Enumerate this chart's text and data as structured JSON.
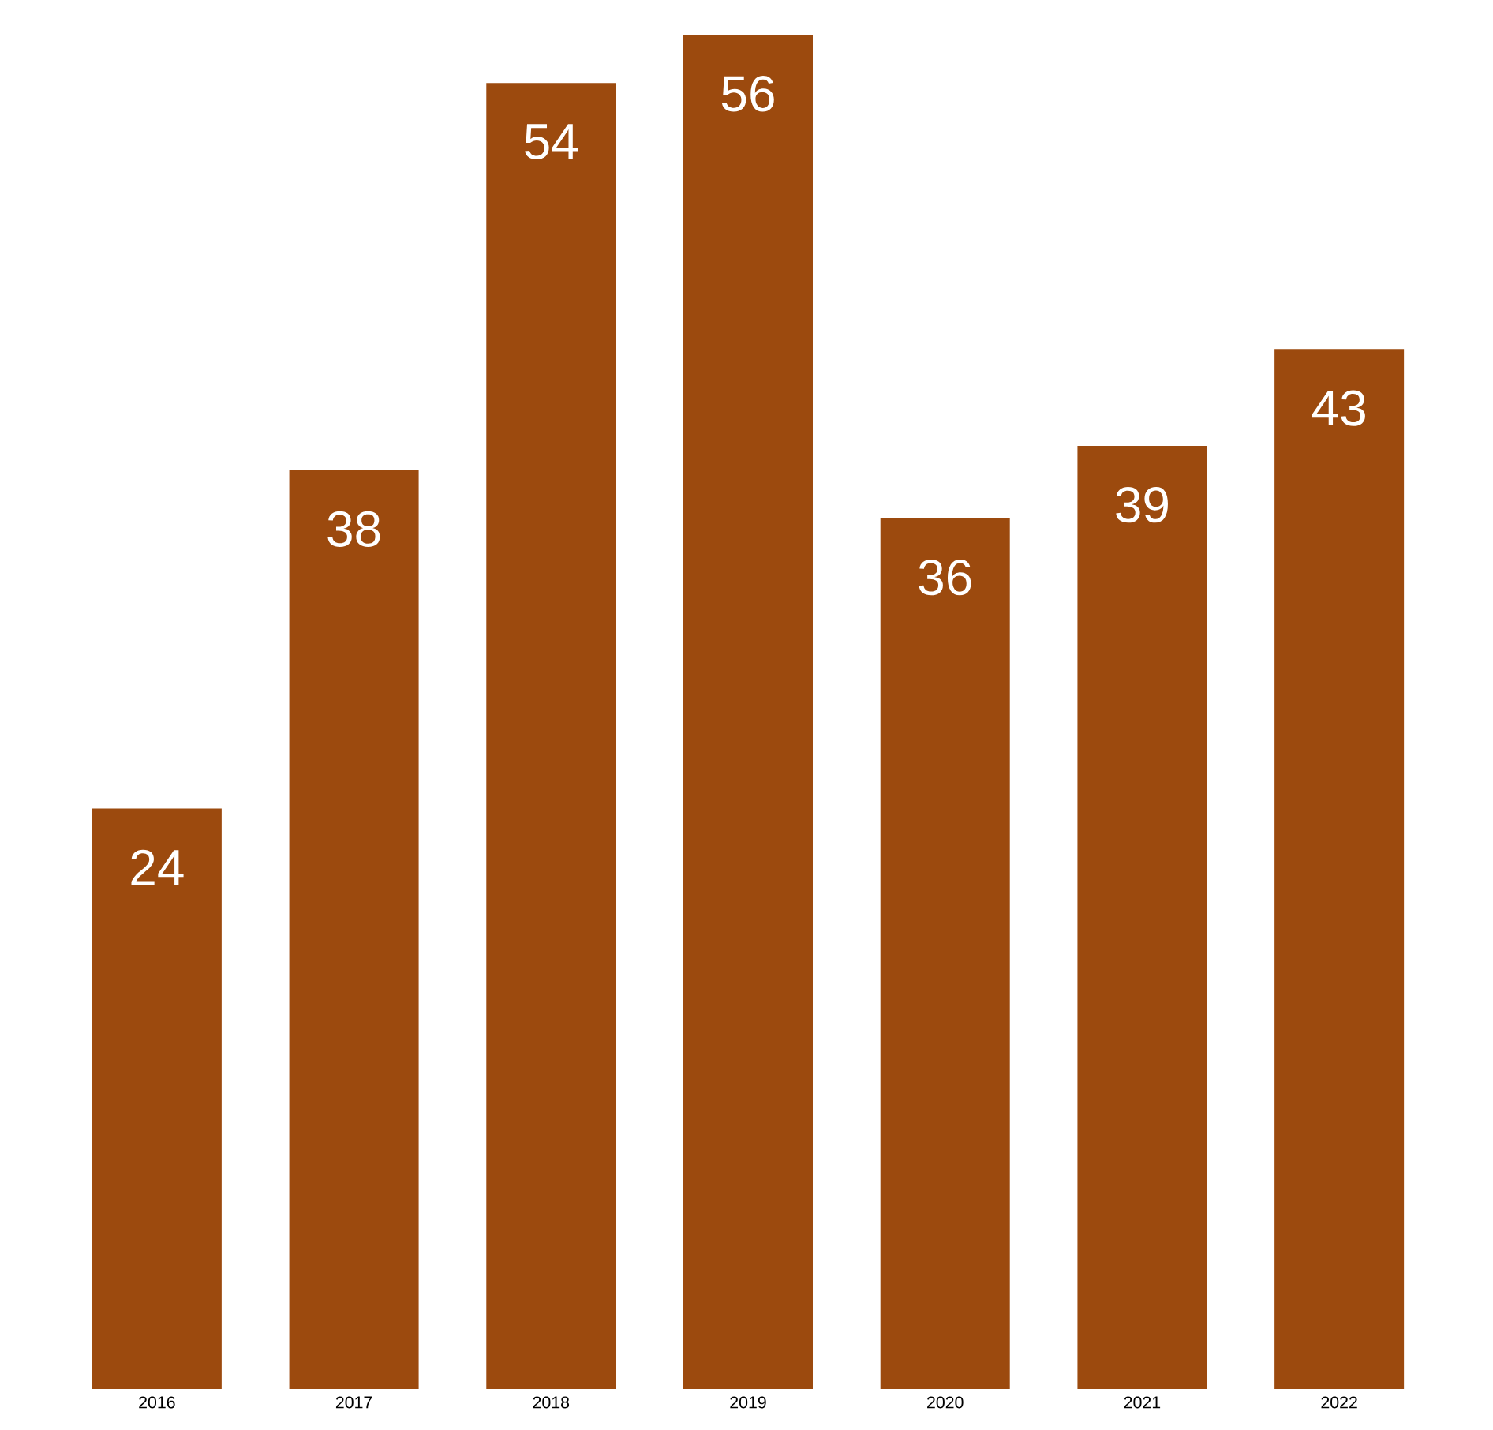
{
  "chart_data": {
    "type": "bar",
    "categories": [
      "2016",
      "2017",
      "2018",
      "2019",
      "2020",
      "2021",
      "2022"
    ],
    "values": [
      24,
      38,
      54,
      56,
      36,
      39,
      43
    ],
    "color": "#9c4a0e",
    "data_labels": true
  }
}
